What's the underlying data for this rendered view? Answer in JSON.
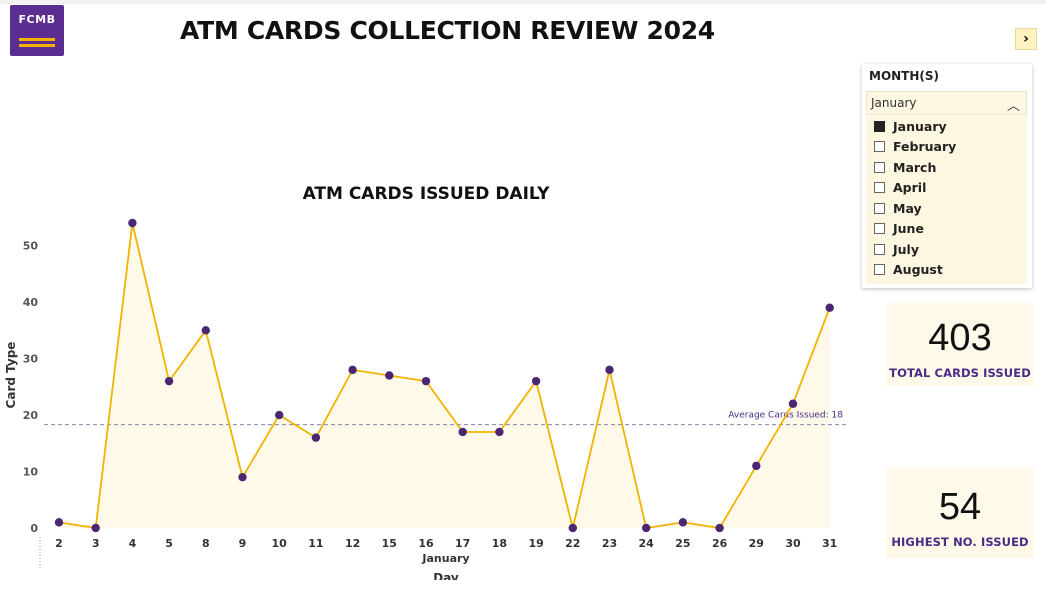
{
  "logo": {
    "text": "FCMB"
  },
  "header": {
    "title": "ATM CARDS COLLECTION REVIEW 2024"
  },
  "slicer": {
    "label": "MONTH(S)",
    "selected": "January",
    "options": [
      {
        "label": "January",
        "checked": true
      },
      {
        "label": "February",
        "checked": false
      },
      {
        "label": "March",
        "checked": false
      },
      {
        "label": "April",
        "checked": false
      },
      {
        "label": "May",
        "checked": false
      },
      {
        "label": "June",
        "checked": false
      },
      {
        "label": "July",
        "checked": false
      },
      {
        "label": "August",
        "checked": false
      }
    ]
  },
  "kpis": {
    "total": {
      "value": "403",
      "label": "TOTAL CARDS ISSUED"
    },
    "highest": {
      "value": "54",
      "label": "HIGHEST NO. ISSUED"
    }
  },
  "colors": {
    "brand": "#5c2d91",
    "accent": "#f2b400",
    "line": "#f0b400",
    "marker": "#4b2673",
    "area": "#fef9e9",
    "kpi_label": "#4b2a85"
  },
  "chart_data": {
    "type": "area",
    "title": "ATM CARDS ISSUED DAILY",
    "xlabel": "Day",
    "x_group_label": "January",
    "ylabel": "Card Type",
    "categories": [
      "2",
      "3",
      "4",
      "5",
      "8",
      "9",
      "10",
      "11",
      "12",
      "15",
      "16",
      "17",
      "18",
      "19",
      "22",
      "23",
      "24",
      "25",
      "26",
      "29",
      "30",
      "31"
    ],
    "series": [
      {
        "values": [
          1,
          0,
          54,
          26,
          35,
          9,
          20,
          16,
          28,
          27,
          26,
          17,
          17,
          26,
          0,
          28,
          0,
          1,
          0,
          11,
          22,
          39
        ]
      }
    ],
    "yticks": [
      0,
      10,
      20,
      30,
      40,
      50
    ],
    "ylim": [
      0,
      54
    ],
    "reference_line": {
      "label": "Average Cards Issued: 18",
      "value": 18.3
    },
    "grid": false,
    "legend": "none"
  }
}
